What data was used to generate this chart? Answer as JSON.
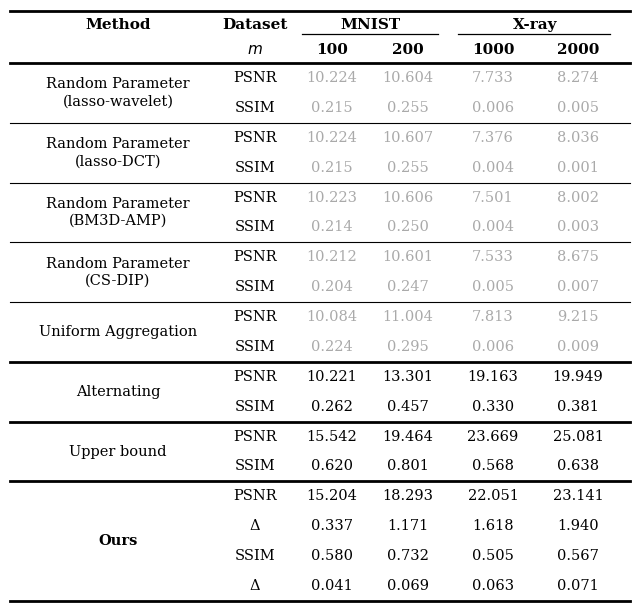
{
  "rows": [
    {
      "method": "Random Parameter\n(lasso-wavelet)",
      "metrics": [
        "PSNR",
        "SSIM"
      ],
      "values": [
        [
          "10.224",
          "10.604",
          "7.733",
          "8.274"
        ],
        [
          "0.215",
          "0.255",
          "0.006",
          "0.005"
        ]
      ],
      "gray": true,
      "bold_method": false
    },
    {
      "method": "Random Parameter\n(lasso-DCT)",
      "metrics": [
        "PSNR",
        "SSIM"
      ],
      "values": [
        [
          "10.224",
          "10.607",
          "7.376",
          "8.036"
        ],
        [
          "0.215",
          "0.255",
          "0.004",
          "0.001"
        ]
      ],
      "gray": true,
      "bold_method": false
    },
    {
      "method": "Random Parameter\n(BM3D-AMP)",
      "metrics": [
        "PSNR",
        "SSIM"
      ],
      "values": [
        [
          "10.223",
          "10.606",
          "7.501",
          "8.002"
        ],
        [
          "0.214",
          "0.250",
          "0.004",
          "0.003"
        ]
      ],
      "gray": true,
      "bold_method": false
    },
    {
      "method": "Random Parameter\n(CS-DIP)",
      "metrics": [
        "PSNR",
        "SSIM"
      ],
      "values": [
        [
          "10.212",
          "10.601",
          "7.533",
          "8.675"
        ],
        [
          "0.204",
          "0.247",
          "0.005",
          "0.007"
        ]
      ],
      "gray": true,
      "bold_method": false
    },
    {
      "method": "Uniform Aggregation",
      "metrics": [
        "PSNR",
        "SSIM"
      ],
      "values": [
        [
          "10.084",
          "11.004",
          "7.813",
          "9.215"
        ],
        [
          "0.224",
          "0.295",
          "0.006",
          "0.009"
        ]
      ],
      "gray": true,
      "bold_method": false
    },
    {
      "method": "Alternating",
      "metrics": [
        "PSNR",
        "SSIM"
      ],
      "values": [
        [
          "10.221",
          "13.301",
          "19.163",
          "19.949"
        ],
        [
          "0.262",
          "0.457",
          "0.330",
          "0.381"
        ]
      ],
      "gray": false,
      "bold_method": false
    },
    {
      "method": "Upper bound",
      "metrics": [
        "PSNR",
        "SSIM"
      ],
      "values": [
        [
          "15.542",
          "19.464",
          "23.669",
          "25.081"
        ],
        [
          "0.620",
          "0.801",
          "0.568",
          "0.638"
        ]
      ],
      "gray": false,
      "bold_method": false
    },
    {
      "method": "Ours",
      "metrics": [
        "PSNR",
        "Δ",
        "SSIM",
        "Δ"
      ],
      "values": [
        [
          "15.204",
          "18.293",
          "22.051",
          "23.141"
        ],
        [
          "0.337",
          "1.171",
          "1.618",
          "1.940"
        ],
        [
          "0.580",
          "0.732",
          "0.505",
          "0.567"
        ],
        [
          "0.041",
          "0.069",
          "0.063",
          "0.071"
        ]
      ],
      "gray": false,
      "bold_method": true
    }
  ],
  "thick_before_idx": [
    5,
    6,
    7
  ],
  "gray_color": "#aaaaaa",
  "black_color": "#000000",
  "font_size": 10.5,
  "header_font_size": 11
}
